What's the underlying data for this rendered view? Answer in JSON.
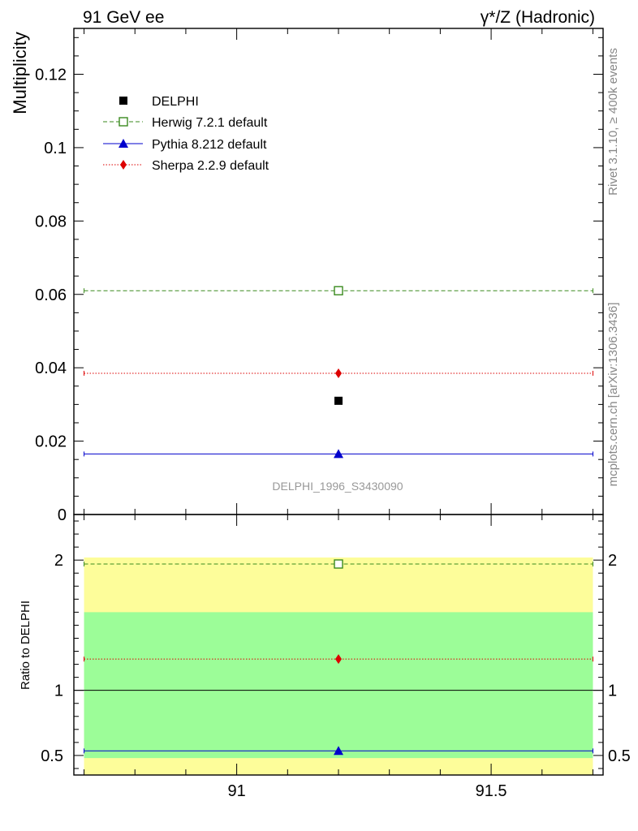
{
  "header": {
    "left": "91 GeV ee",
    "right": "γ*/Z (Hadronic)"
  },
  "side_labels": {
    "rivet": "Rivet 3.1.10, ≥ 400k events",
    "source": "mcplots.cern.ch [arXiv:1306.3436]"
  },
  "watermark": "DELPHI_1996_S3430090",
  "colors": {
    "data": "#000000",
    "herwig": "#3a8a1e",
    "pythia": "#0000cc",
    "sherpa": "#dd0000",
    "band_inner": "#9cfd98",
    "band_outer": "#fdfd9a"
  },
  "chart_data": [
    {
      "type": "scatter",
      "title": "",
      "xlabel": "",
      "ylabel": "Multiplicity",
      "xlim": [
        90.68,
        91.72
      ],
      "ylim": [
        0,
        0.1325
      ],
      "x_ticks": [
        91,
        91.5
      ],
      "x_tick_labels": [
        "91",
        "91.5"
      ],
      "y_ticks": [
        0.02,
        0.04,
        0.06,
        0.08,
        0.1,
        0.12
      ],
      "y_tick_labels": [
        "0.02",
        "0.04",
        "0.06",
        "0.08",
        "0.1",
        "0.12"
      ],
      "y_zero_label": "0",
      "bin": [
        90.7,
        91.7
      ],
      "x_center": 91.2,
      "series": [
        {
          "name": "DELPHI",
          "key": "data",
          "value": 0.031,
          "marker": "square-filled",
          "line": "none"
        },
        {
          "name": "Herwig 7.2.1 default",
          "key": "herwig",
          "value": 0.061,
          "marker": "square-open",
          "line": "dashed"
        },
        {
          "name": "Pythia 8.212 default",
          "key": "pythia",
          "value": 0.0165,
          "marker": "triangle",
          "line": "solid"
        },
        {
          "name": "Sherpa 2.2.9 default",
          "key": "sherpa",
          "value": 0.0385,
          "marker": "diamond",
          "line": "dotted"
        }
      ],
      "legend_position": "top-left"
    },
    {
      "type": "scatter",
      "title": "",
      "xlabel": "",
      "ylabel": "Ratio to DELPHI",
      "xlim": [
        90.68,
        91.72
      ],
      "ylim": [
        0.35,
        2.35
      ],
      "y_ticks": [
        0.5,
        1,
        2
      ],
      "y_tick_labels": [
        "0.5",
        "1",
        "2"
      ],
      "reference_line": 1,
      "bands": {
        "inner": [
          0.48,
          1.6
        ],
        "outer": [
          0.35,
          2.02
        ]
      },
      "series": [
        {
          "name": "Herwig 7.2.1 default",
          "key": "herwig",
          "value": 1.97
        },
        {
          "name": "Pythia 8.212 default",
          "key": "pythia",
          "value": 0.535
        },
        {
          "name": "Sherpa 2.2.9 default",
          "key": "sherpa",
          "value": 1.24
        }
      ]
    }
  ]
}
